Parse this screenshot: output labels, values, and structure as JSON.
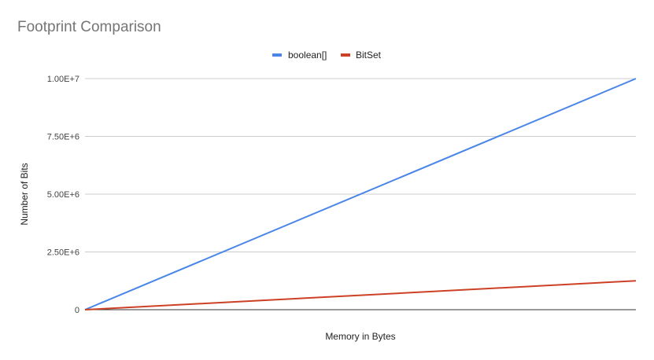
{
  "chart_data": {
    "type": "line",
    "title": "Footprint Comparison",
    "xlabel": "Memory in Bytes",
    "ylabel": "Number of Bits",
    "ylim": [
      0,
      10000000
    ],
    "yticks": [
      0,
      2500000,
      5000000,
      7500000,
      10000000
    ],
    "ytick_labels": [
      "0",
      "2.50E+6",
      "5.00E+6",
      "7.50E+6",
      "1.00E+7"
    ],
    "x": [
      0,
      1
    ],
    "series": [
      {
        "name": "boolean[]",
        "color": "#4a86e8",
        "values": [
          0,
          10000000
        ]
      },
      {
        "name": "BitSet",
        "color": "#cc4125",
        "values": [
          0,
          1250000
        ]
      }
    ],
    "grid": true,
    "legend": "top-center"
  }
}
